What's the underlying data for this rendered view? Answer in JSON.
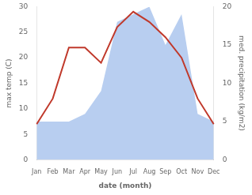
{
  "chart_data": {
    "type": "line",
    "categories": [
      "Jan",
      "Feb",
      "Mar",
      "Apr",
      "May",
      "Jun",
      "Jul",
      "Aug",
      "Sep",
      "Oct",
      "Nov",
      "Dec"
    ],
    "series": [
      {
        "type": "line",
        "color": "#c0392b",
        "values": [
          7,
          12,
          22,
          22,
          19,
          26,
          29,
          27,
          24,
          20,
          12,
          7
        ]
      },
      {
        "type": "area",
        "color": "#b8cef0",
        "axis": "y2",
        "values": [
          5,
          5,
          5,
          6,
          9,
          18,
          19,
          20,
          15,
          19,
          6,
          5
        ]
      }
    ],
    "xlabel": "date (month)",
    "ylabel": "max temp (C)",
    "y2label": "med. precipitation (kg/m2)",
    "ylim": [
      0,
      30
    ],
    "yticks": [
      0,
      5,
      10,
      15,
      20,
      25,
      30
    ],
    "y2lim": [
      0,
      20
    ],
    "y2ticks": [
      0,
      5,
      10,
      15,
      20
    ],
    "grid": false
  }
}
